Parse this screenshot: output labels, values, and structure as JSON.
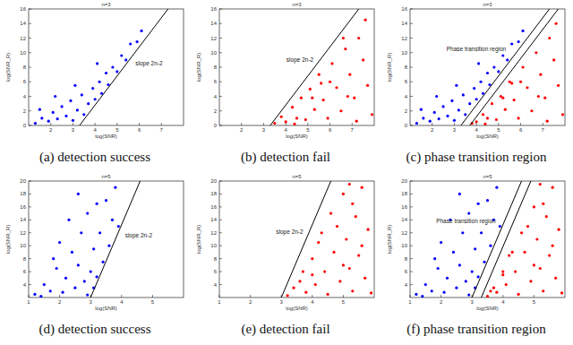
{
  "chart_data": [
    {
      "type": "scatter",
      "title": "n=3",
      "caption": "(a) detection success",
      "x_label": "log(SNR)",
      "y_label": "log(SNR_R)",
      "annotation": "slope 2n-2",
      "xlim": [
        1,
        8
      ],
      "xticks": [
        2,
        3,
        4,
        5,
        6,
        7
      ],
      "ylim": [
        0,
        16
      ],
      "yticks": [
        0,
        2,
        4,
        6,
        8,
        10,
        12,
        14,
        16
      ],
      "series": [
        {
          "color": "#0000ff",
          "marker": "circle",
          "x": [
            1.3,
            1.6,
            1.9,
            2.1,
            2.3,
            2.5,
            2.7,
            2.9,
            3.0,
            3.2,
            3.4,
            3.5,
            3.7,
            3.9,
            4.0,
            4.2,
            4.3,
            4.5,
            4.6,
            4.8,
            5.0,
            5.2,
            5.4,
            5.6,
            5.9,
            6.1,
            2.2,
            3.1,
            1.5,
            4.1
          ],
          "y": [
            0.3,
            1.0,
            0.6,
            1.8,
            0.9,
            2.6,
            1.3,
            3.4,
            0.7,
            2.1,
            4.2,
            1.5,
            3.0,
            5.1,
            3.6,
            6.0,
            4.4,
            7.2,
            5.6,
            8.0,
            7.4,
            9.6,
            9.0,
            11.2,
            11.5,
            13.0,
            4.0,
            5.5,
            2.2,
            8.5
          ]
        }
      ],
      "lines": [
        {
          "x": [
            3.3,
            7.3
          ],
          "y": [
            0,
            16
          ]
        }
      ]
    },
    {
      "type": "scatter",
      "title": "n=3",
      "caption": "(b) detection fail",
      "x_label": "log(SNR)",
      "y_label": "log(SNR_R)",
      "annotation": "slope 2n-2",
      "xlim": [
        1,
        8
      ],
      "xticks": [
        2,
        3,
        4,
        5,
        6,
        7
      ],
      "ylim": [
        0,
        16
      ],
      "yticks": [
        0,
        2,
        4,
        6,
        8,
        10,
        12,
        14,
        16
      ],
      "series": [
        {
          "color": "#ff0000",
          "marker": "circle",
          "x": [
            3.5,
            3.8,
            4.0,
            4.3,
            4.5,
            4.7,
            4.9,
            5.1,
            5.3,
            5.5,
            5.7,
            5.9,
            6.1,
            6.3,
            6.5,
            6.7,
            6.9,
            7.1,
            7.3,
            7.5,
            7.7,
            7.9,
            6.0,
            5.2,
            7.2,
            6.6,
            4.4,
            7.6,
            5.6,
            6.8
          ],
          "y": [
            0.3,
            1.2,
            0.5,
            2.5,
            1.0,
            3.8,
            0.8,
            5.0,
            2.2,
            7.0,
            3.5,
            1.0,
            8.5,
            5.2,
            2.0,
            10.5,
            7.0,
            3.8,
            12.0,
            9.0,
            5.5,
            1.5,
            6.0,
            3.8,
            0.6,
            12.0,
            0.2,
            14.5,
            5.8,
            4.0
          ]
        }
      ],
      "lines": [
        {
          "x": [
            3.3,
            7.3
          ],
          "y": [
            0,
            16
          ]
        }
      ]
    },
    {
      "type": "scatter",
      "title": "n=3",
      "caption": "(c) phase transition region",
      "x_label": "log(SNR)",
      "y_label": "log(SNR_R)",
      "annotation": "Phase transition region",
      "xlim": [
        1,
        8
      ],
      "xticks": [
        2,
        3,
        4,
        5,
        6,
        7
      ],
      "ylim": [
        0,
        16
      ],
      "yticks": [
        0,
        2,
        4,
        6,
        8,
        10,
        12,
        14,
        16
      ],
      "series": [
        {
          "color": "#0000ff",
          "marker": "circle",
          "x": [
            1.3,
            1.6,
            1.9,
            2.1,
            2.3,
            2.5,
            2.7,
            2.9,
            3.0,
            3.2,
            3.4,
            3.5,
            3.7,
            3.9,
            4.0,
            4.2,
            4.3,
            4.5,
            4.6,
            4.8,
            5.0,
            5.2,
            5.4,
            5.6,
            5.9,
            6.1,
            2.2,
            3.1,
            1.5,
            4.1
          ],
          "y": [
            0.3,
            1.0,
            0.6,
            1.8,
            0.9,
            2.6,
            1.3,
            3.4,
            0.7,
            2.1,
            4.2,
            1.5,
            3.0,
            5.1,
            3.6,
            6.0,
            4.4,
            7.2,
            5.6,
            8.0,
            7.4,
            9.6,
            9.0,
            11.2,
            11.5,
            13.0,
            4.0,
            5.5,
            2.2,
            8.5
          ]
        },
        {
          "color": "#ff0000",
          "marker": "circle",
          "x": [
            3.8,
            4.0,
            4.3,
            4.5,
            4.7,
            4.9,
            5.1,
            5.3,
            5.5,
            5.7,
            5.9,
            6.1,
            6.3,
            6.5,
            6.7,
            6.9,
            7.1,
            7.3,
            7.5,
            7.7,
            7.9,
            6.0,
            5.2,
            7.2,
            4.4,
            7.6,
            5.6,
            6.8
          ],
          "y": [
            0.3,
            0.5,
            1.5,
            1.0,
            3.0,
            0.8,
            4.0,
            2.2,
            6.0,
            3.5,
            1.0,
            8.0,
            5.2,
            2.0,
            10.0,
            7.0,
            3.8,
            12.0,
            9.0,
            5.5,
            1.5,
            6.0,
            3.8,
            0.6,
            0.2,
            14.0,
            5.8,
            4.0
          ]
        }
      ],
      "lines": [
        {
          "x": [
            3.3,
            7.3
          ],
          "y": [
            0,
            16
          ]
        },
        {
          "x": [
            3.7,
            7.7
          ],
          "y": [
            0,
            16
          ]
        }
      ]
    },
    {
      "type": "scatter",
      "title": "n=5",
      "caption": "(d) detection success",
      "x_label": "log(SNR)",
      "y_label": "log(SNR_R)",
      "annotation": "slope 2n-2",
      "xlim": [
        1,
        6
      ],
      "xticks": [
        1,
        2,
        3,
        4,
        5
      ],
      "ylim": [
        2,
        20
      ],
      "yticks": [
        4,
        6,
        8,
        10,
        12,
        14,
        16,
        18,
        20
      ],
      "series": [
        {
          "color": "#0000ff",
          "marker": "circle",
          "x": [
            1.2,
            1.5,
            1.7,
            1.9,
            2.1,
            2.2,
            2.4,
            2.5,
            2.6,
            2.7,
            2.8,
            2.9,
            3.0,
            3.1,
            3.2,
            3.3,
            3.4,
            3.5,
            3.6,
            3.7,
            3.8,
            3.9,
            2.0,
            2.3,
            1.8,
            2.6,
            3.2,
            1.4,
            2.9,
            3.1
          ],
          "y": [
            2.5,
            4.0,
            3.0,
            6.5,
            2.8,
            5.0,
            9.0,
            3.5,
            7.0,
            12.0,
            4.5,
            15.0,
            6.0,
            9.5,
            5.2,
            12.0,
            7.5,
            17.0,
            10.0,
            14.0,
            19.0,
            13.0,
            10.5,
            14.0,
            8.0,
            18.0,
            16.5,
            2.2,
            2.4,
            3.5
          ]
        }
      ],
      "lines": [
        {
          "x": [
            3.0,
            4.6
          ],
          "y": [
            2,
            20
          ]
        }
      ]
    },
    {
      "type": "scatter",
      "title": "n=5",
      "caption": "(e) detection fail",
      "x_label": "log(SNR)",
      "y_label": "log(SNR_R)",
      "annotation": "slope 2n-2",
      "xlim": [
        1,
        6
      ],
      "xticks": [
        1,
        2,
        3,
        4,
        5
      ],
      "ylim": [
        2,
        20
      ],
      "yticks": [
        4,
        6,
        8,
        10,
        12,
        14,
        16,
        18,
        20
      ],
      "series": [
        {
          "color": "#ff0000",
          "marker": "circle",
          "x": [
            3.2,
            3.4,
            3.6,
            3.8,
            4.0,
            4.1,
            4.3,
            4.4,
            4.5,
            4.6,
            4.7,
            4.9,
            5.0,
            5.1,
            5.2,
            5.3,
            5.4,
            5.5,
            5.6,
            5.7,
            5.8,
            5.9,
            4.2,
            4.8,
            5.3,
            4.0,
            5.0,
            5.6,
            5.2,
            3.7
          ],
          "y": [
            2.3,
            3.5,
            4.5,
            2.8,
            8.0,
            4.0,
            12.0,
            6.0,
            2.5,
            15.0,
            9.0,
            4.5,
            18.0,
            11.0,
            6.5,
            3.0,
            14.5,
            8.5,
            19.0,
            5.0,
            12.5,
            2.7,
            10.5,
            13.0,
            16.5,
            5.5,
            7.0,
            10.0,
            19.5,
            6.0
          ]
        }
      ],
      "lines": [
        {
          "x": [
            3.0,
            4.6
          ],
          "y": [
            2,
            20
          ]
        }
      ]
    },
    {
      "type": "scatter",
      "title": "n=5",
      "caption": "(f) phase transition region",
      "x_label": "log(SNR)",
      "y_label": "log(SNR_R)",
      "annotation": "Phase transition region",
      "xlim": [
        1,
        6
      ],
      "xticks": [
        1,
        2,
        3,
        4,
        5
      ],
      "ylim": [
        2,
        20
      ],
      "yticks": [
        4,
        6,
        8,
        10,
        12,
        14,
        16,
        18,
        20
      ],
      "series": [
        {
          "color": "#0000ff",
          "marker": "circle",
          "x": [
            1.2,
            1.5,
            1.7,
            1.9,
            2.1,
            2.2,
            2.4,
            2.5,
            2.6,
            2.7,
            2.8,
            2.9,
            3.0,
            3.1,
            3.2,
            3.3,
            3.4,
            3.5,
            3.6,
            3.7,
            3.8,
            3.9,
            2.0,
            2.3,
            1.8,
            2.6,
            3.2,
            1.4,
            2.9,
            3.1
          ],
          "y": [
            2.5,
            4.0,
            3.0,
            6.5,
            2.8,
            5.0,
            9.0,
            3.5,
            7.0,
            12.0,
            4.5,
            15.0,
            6.0,
            9.5,
            5.2,
            12.0,
            7.5,
            17.0,
            10.0,
            14.0,
            19.0,
            13.0,
            10.5,
            14.0,
            8.0,
            18.0,
            16.5,
            2.2,
            2.4,
            3.5
          ]
        },
        {
          "color": "#ff0000",
          "marker": "circle",
          "x": [
            3.5,
            3.6,
            3.8,
            4.0,
            4.1,
            4.3,
            4.4,
            4.5,
            4.6,
            4.7,
            4.9,
            5.0,
            5.1,
            5.2,
            5.3,
            5.4,
            5.5,
            5.6,
            5.7,
            5.8,
            5.9,
            4.2,
            4.8,
            5.3,
            4.0,
            5.0,
            5.6,
            5.2,
            3.7
          ],
          "y": [
            2.2,
            3.0,
            2.8,
            6.0,
            4.0,
            9.0,
            6.0,
            2.5,
            12.0,
            9.0,
            4.5,
            16.0,
            11.0,
            6.5,
            3.0,
            14.5,
            8.5,
            19.0,
            5.0,
            12.5,
            2.7,
            8.5,
            13.0,
            16.5,
            5.5,
            7.0,
            10.0,
            19.5,
            3.5
          ]
        }
      ],
      "lines": [
        {
          "x": [
            3.0,
            4.6
          ],
          "y": [
            2,
            20
          ]
        },
        {
          "x": [
            3.3,
            4.9
          ],
          "y": [
            2,
            20
          ]
        }
      ]
    }
  ]
}
